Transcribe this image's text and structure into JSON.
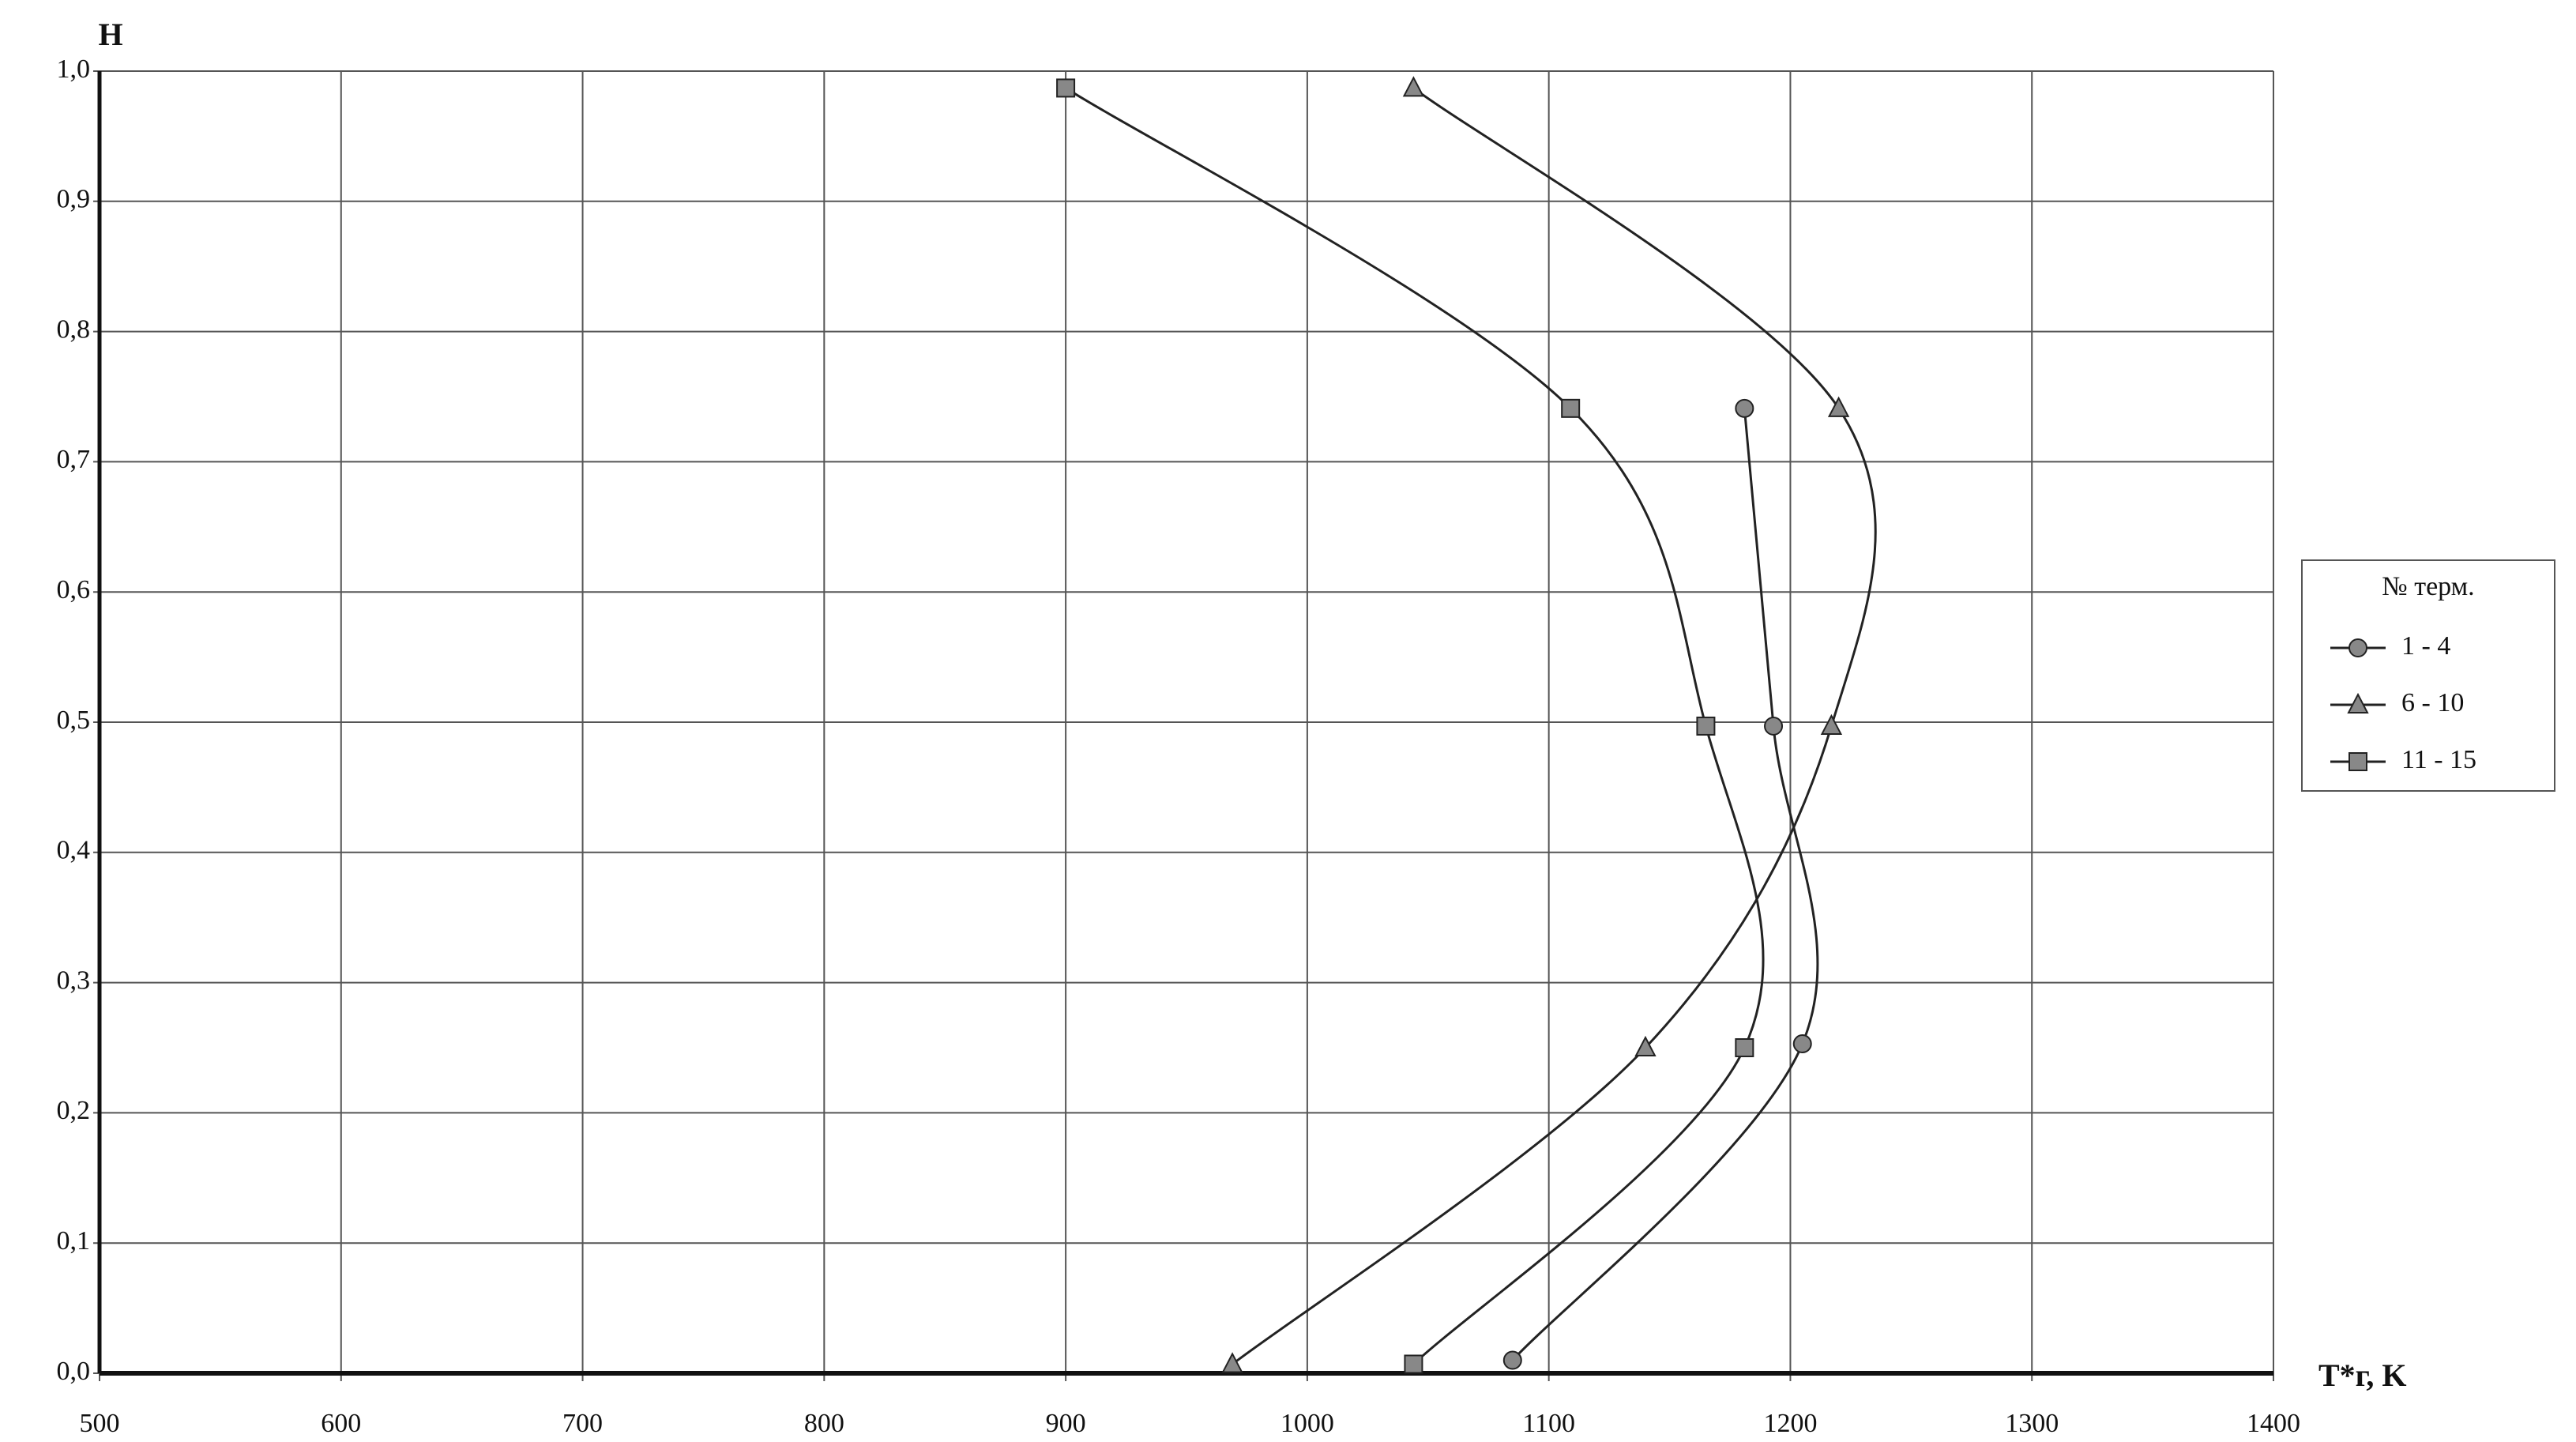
{
  "chart_data": {
    "type": "line",
    "smooth": true,
    "grid": true,
    "y_label": "H",
    "x_label": "T*г, K",
    "xlim": [
      500,
      1400
    ],
    "xticks": [
      500,
      600,
      700,
      800,
      900,
      1000,
      1100,
      1200,
      1300,
      1400
    ],
    "ylim": [
      0,
      1
    ],
    "yticks": [
      {
        "value": 0,
        "label": "0,0"
      },
      {
        "value": 0.1,
        "label": "0,1"
      },
      {
        "value": 0.2,
        "label": "0,2"
      },
      {
        "value": 0.3,
        "label": "0,3"
      },
      {
        "value": 0.4,
        "label": "0,4"
      },
      {
        "value": 0.5,
        "label": "0,5"
      },
      {
        "value": 0.6,
        "label": "0,6"
      },
      {
        "value": 0.7,
        "label": "0,7"
      },
      {
        "value": 0.8,
        "label": "0,8"
      },
      {
        "value": 0.9,
        "label": "0,9"
      },
      {
        "value": 1,
        "label": "1,0"
      }
    ],
    "legend_title": "№ терм.",
    "legend": "right",
    "series": [
      {
        "name": "1 - 4",
        "color": "#222222",
        "marker": "circle",
        "x": [
          1085,
          1205,
          1193,
          1181
        ],
        "values": [
          0.01,
          0.253,
          0.497,
          0.741
        ]
      },
      {
        "name": "6 - 10",
        "color": "#222222",
        "marker": "triangle",
        "x": [
          969,
          1140,
          1217,
          1220,
          1044
        ],
        "values": [
          0.007,
          0.25,
          0.497,
          0.741,
          0.987
        ]
      },
      {
        "name": "11 - 15",
        "color": "#222222",
        "marker": "square",
        "x": [
          1044,
          1181,
          1165,
          1109,
          900
        ],
        "values": [
          0.007,
          0.25,
          0.497,
          0.741,
          0.987
        ]
      }
    ]
  }
}
